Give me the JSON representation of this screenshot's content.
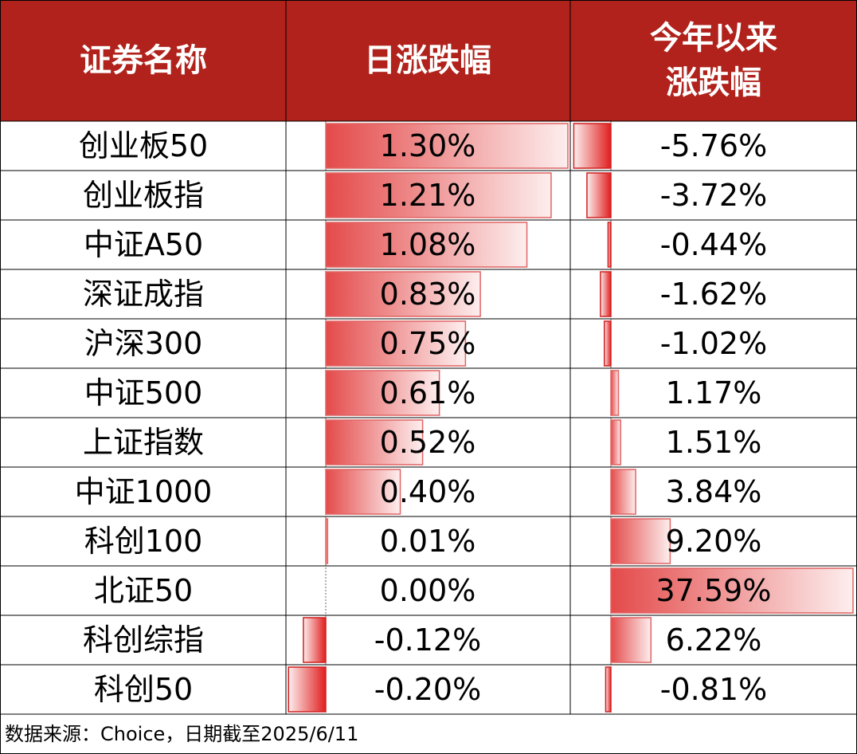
{
  "table": {
    "header": [
      [
        "证券名称"
      ],
      [
        "日涨跌幅"
      ],
      [
        "今年以来",
        "涨跌幅"
      ]
    ],
    "rows": [
      {
        "name": "创业板50",
        "daily": {
          "value": 1.3,
          "label": "1.30%"
        },
        "ytd": {
          "value": -5.76,
          "label": "-5.76%"
        }
      },
      {
        "name": "创业板指",
        "daily": {
          "value": 1.21,
          "label": "1.21%"
        },
        "ytd": {
          "value": -3.72,
          "label": "-3.72%"
        }
      },
      {
        "name": "中证A50",
        "daily": {
          "value": 1.08,
          "label": "1.08%"
        },
        "ytd": {
          "value": -0.44,
          "label": "-0.44%"
        }
      },
      {
        "name": "深证成指",
        "daily": {
          "value": 0.83,
          "label": "0.83%"
        },
        "ytd": {
          "value": -1.62,
          "label": "-1.62%"
        }
      },
      {
        "name": "沪深300",
        "daily": {
          "value": 0.75,
          "label": "0.75%"
        },
        "ytd": {
          "value": -1.02,
          "label": "-1.02%"
        }
      },
      {
        "name": "中证500",
        "daily": {
          "value": 0.61,
          "label": "0.61%"
        },
        "ytd": {
          "value": 1.17,
          "label": "1.17%"
        }
      },
      {
        "name": "上证指数",
        "daily": {
          "value": 0.52,
          "label": "0.52%"
        },
        "ytd": {
          "value": 1.51,
          "label": "1.51%"
        }
      },
      {
        "name": "中证1000",
        "daily": {
          "value": 0.4,
          "label": "0.40%"
        },
        "ytd": {
          "value": 3.84,
          "label": "3.84%"
        }
      },
      {
        "name": "科创100",
        "daily": {
          "value": 0.01,
          "label": "0.01%"
        },
        "ytd": {
          "value": 9.2,
          "label": "9.20%"
        }
      },
      {
        "name": "北证50",
        "daily": {
          "value": 0.0,
          "label": "0.00%"
        },
        "ytd": {
          "value": 37.59,
          "label": "37.59%"
        }
      },
      {
        "name": "科创综指",
        "daily": {
          "value": -0.12,
          "label": "-0.12%"
        },
        "ytd": {
          "value": 6.22,
          "label": "6.22%"
        }
      },
      {
        "name": "科创50",
        "daily": {
          "value": -0.2,
          "label": "-0.20%"
        },
        "ytd": {
          "value": -0.81,
          "label": "-0.81%"
        }
      }
    ],
    "footer": "数据来源：Choice，日期截至2025/6/11"
  }
}
